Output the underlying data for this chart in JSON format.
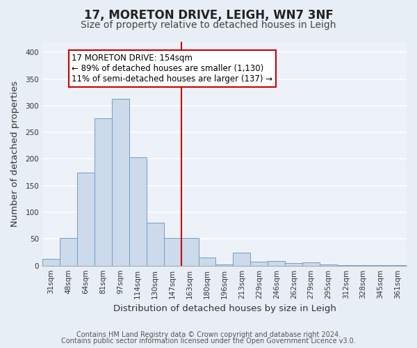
{
  "title": "17, MORETON DRIVE, LEIGH, WN7 3NF",
  "subtitle": "Size of property relative to detached houses in Leigh",
  "xlabel": "Distribution of detached houses by size in Leigh",
  "ylabel": "Number of detached properties",
  "bar_labels": [
    "31sqm",
    "48sqm",
    "64sqm",
    "81sqm",
    "97sqm",
    "114sqm",
    "130sqm",
    "147sqm",
    "163sqm",
    "180sqm",
    "196sqm",
    "213sqm",
    "229sqm",
    "246sqm",
    "262sqm",
    "279sqm",
    "295sqm",
    "312sqm",
    "328sqm",
    "345sqm",
    "361sqm"
  ],
  "bar_heights": [
    12,
    52,
    175,
    277,
    313,
    203,
    80,
    52,
    52,
    15,
    2,
    25,
    7,
    9,
    5,
    6,
    2,
    1,
    1,
    1,
    1
  ],
  "bar_color": "#ccdaeb",
  "bar_edge_color": "#6b9ec8",
  "vline_x": 7.5,
  "vline_color": "#cc0000",
  "annotation_title": "17 MORETON DRIVE: 154sqm",
  "annotation_line1": "← 89% of detached houses are smaller (1,130)",
  "annotation_line2": "11% of semi-detached houses are larger (137) →",
  "annotation_box_facecolor": "#ffffff",
  "annotation_box_edgecolor": "#cc0000",
  "ylim": [
    0,
    420
  ],
  "yticks": [
    0,
    50,
    100,
    150,
    200,
    250,
    300,
    350,
    400
  ],
  "footer_line1": "Contains HM Land Registry data © Crown copyright and database right 2024.",
  "footer_line2": "Contains public sector information licensed under the Open Government Licence v3.0.",
  "bg_color": "#e8eef5",
  "plot_bg_color": "#edf1f8",
  "grid_color": "#ffffff",
  "title_fontsize": 12,
  "subtitle_fontsize": 10,
  "axis_label_fontsize": 9.5,
  "tick_fontsize": 7.5,
  "annotation_fontsize": 8.5,
  "footer_fontsize": 7
}
